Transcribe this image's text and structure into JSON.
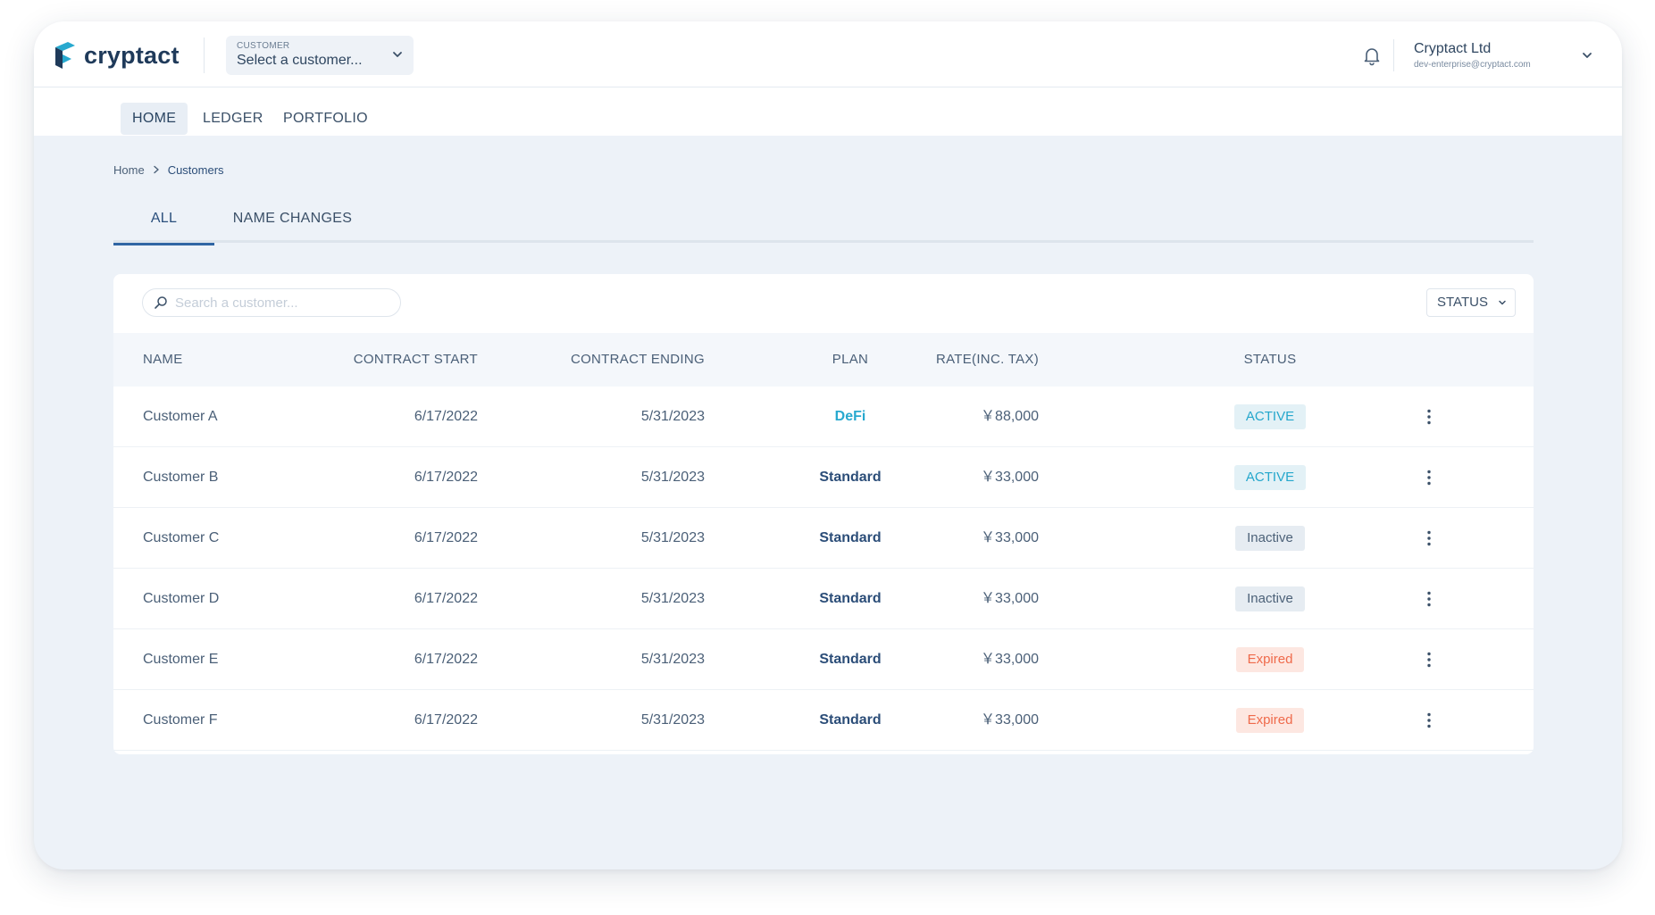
{
  "app": {
    "logo_text": "cryptact"
  },
  "header": {
    "customer_select": {
      "label": "CUSTOMER",
      "value": "Select a customer..."
    },
    "account": {
      "name": "Cryptact Ltd",
      "email": "dev-enterprise@cryptact.com"
    }
  },
  "nav": {
    "items": [
      {
        "label": "HOME",
        "active": true
      },
      {
        "label": "LEDGER",
        "active": false
      },
      {
        "label": "PORTFOLIO",
        "active": false
      }
    ]
  },
  "breadcrumb": {
    "home": "Home",
    "current": "Customers"
  },
  "tabs": [
    {
      "label": "ALL",
      "active": true
    },
    {
      "label": "NAME CHANGES",
      "active": false
    }
  ],
  "search": {
    "placeholder": "Search a customer..."
  },
  "status_filter": {
    "label": "STATUS"
  },
  "table": {
    "headers": {
      "name": "NAME",
      "contract_start": "CONTRACT START",
      "contract_ending": "CONTRACT ENDING",
      "plan": "PLAN",
      "rate": "RATE(INC. TAX)",
      "status": "STATUS"
    },
    "rows": [
      {
        "name": "Customer A",
        "contract_start": "6/17/2022",
        "contract_ending": "5/31/2023",
        "plan": "DeFi",
        "rate": "￥88,000",
        "status": "ACTIVE"
      },
      {
        "name": "Customer B",
        "contract_start": "6/17/2022",
        "contract_ending": "5/31/2023",
        "plan": "Standard",
        "rate": "￥33,000",
        "status": "ACTIVE"
      },
      {
        "name": "Customer C",
        "contract_start": "6/17/2022",
        "contract_ending": "5/31/2023",
        "plan": "Standard",
        "rate": "￥33,000",
        "status": "Inactive"
      },
      {
        "name": "Customer D",
        "contract_start": "6/17/2022",
        "contract_ending": "5/31/2023",
        "plan": "Standard",
        "rate": "￥33,000",
        "status": "Inactive"
      },
      {
        "name": "Customer E",
        "contract_start": "6/17/2022",
        "contract_ending": "5/31/2023",
        "plan": "Standard",
        "rate": "￥33,000",
        "status": "Expired"
      },
      {
        "name": "Customer F",
        "contract_start": "6/17/2022",
        "contract_ending": "5/31/2023",
        "plan": "Standard",
        "rate": "￥33,000",
        "status": "Expired"
      }
    ]
  },
  "colors": {
    "brand_navy": "#1f3a5a",
    "brand_cyan": "#28a9cf",
    "page_background": "#edf2f8",
    "active_tab_underline": "#2f65a3",
    "status_active_text": "#25a7cc",
    "status_active_bg": "#e3f1f6",
    "status_inactive_text": "#4c6178",
    "status_inactive_bg": "#e6ecf2",
    "status_expired_text": "#ef6a4b",
    "status_expired_bg": "#fde7e1"
  },
  "icons": {
    "logo": "cryptact-logo-icon",
    "customer_chevron": "chevron-down-icon",
    "bell": "bell-icon",
    "account_chevron": "chevron-down-icon",
    "breadcrumb_separator": "chevron-right-icon",
    "search": "search-icon",
    "status_chevron": "chevron-down-icon",
    "row_menu": "more-vertical-icon"
  }
}
